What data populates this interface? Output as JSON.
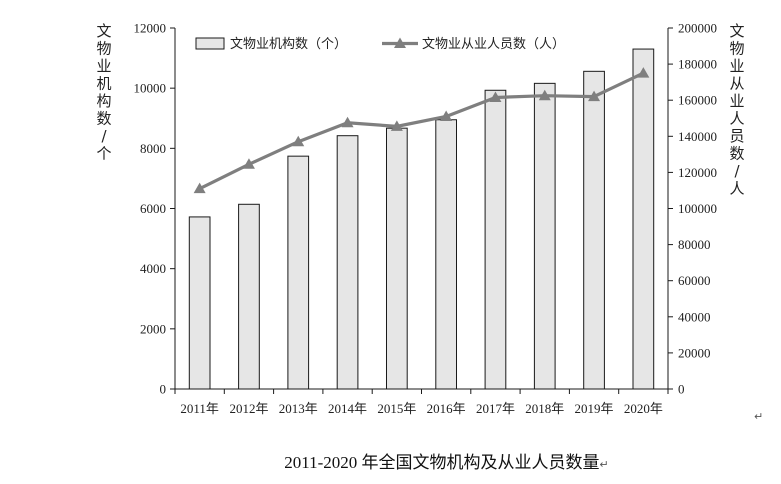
{
  "chart_data": {
    "type": "bar",
    "categories": [
      "2011年",
      "2012年",
      "2013年",
      "2014年",
      "2015年",
      "2016年",
      "2017年",
      "2018年",
      "2019年",
      "2020年"
    ],
    "series": [
      {
        "name": "文物业机构数（个）",
        "type": "bar",
        "axis": "left",
        "values": [
          5720,
          6140,
          7740,
          8420,
          8670,
          8950,
          9930,
          10160,
          10560,
          11300
        ]
      },
      {
        "name": "文物业从业人员数（人）",
        "type": "line",
        "axis": "right",
        "values": [
          111000,
          124500,
          137000,
          147500,
          145500,
          151000,
          161500,
          162500,
          162000,
          175000
        ]
      }
    ],
    "ylabel": "文物业机构数/个",
    "y2label": "文物业从业人员数/人",
    "ylim": [
      0,
      12000
    ],
    "y2lim": [
      0,
      200000
    ],
    "yticks": [
      "0",
      "2000",
      "4000",
      "6000",
      "8000",
      "10000",
      "12000"
    ],
    "y2ticks": [
      "0",
      "20000",
      "40000",
      "60000",
      "80000",
      "100000",
      "120000",
      "140000",
      "160000",
      "180000",
      "200000"
    ],
    "legend_position": "top",
    "grid": false,
    "colors": {
      "bar_fill": "#e6e6e6",
      "bar_stroke": "#1a1a1a",
      "line": "#7f7f7f",
      "axis": "#1a1a1a"
    }
  },
  "caption": "2011-2020 年全国文物机构及从业人员数量",
  "caption_mark": "↵",
  "corner_mark": "↵"
}
